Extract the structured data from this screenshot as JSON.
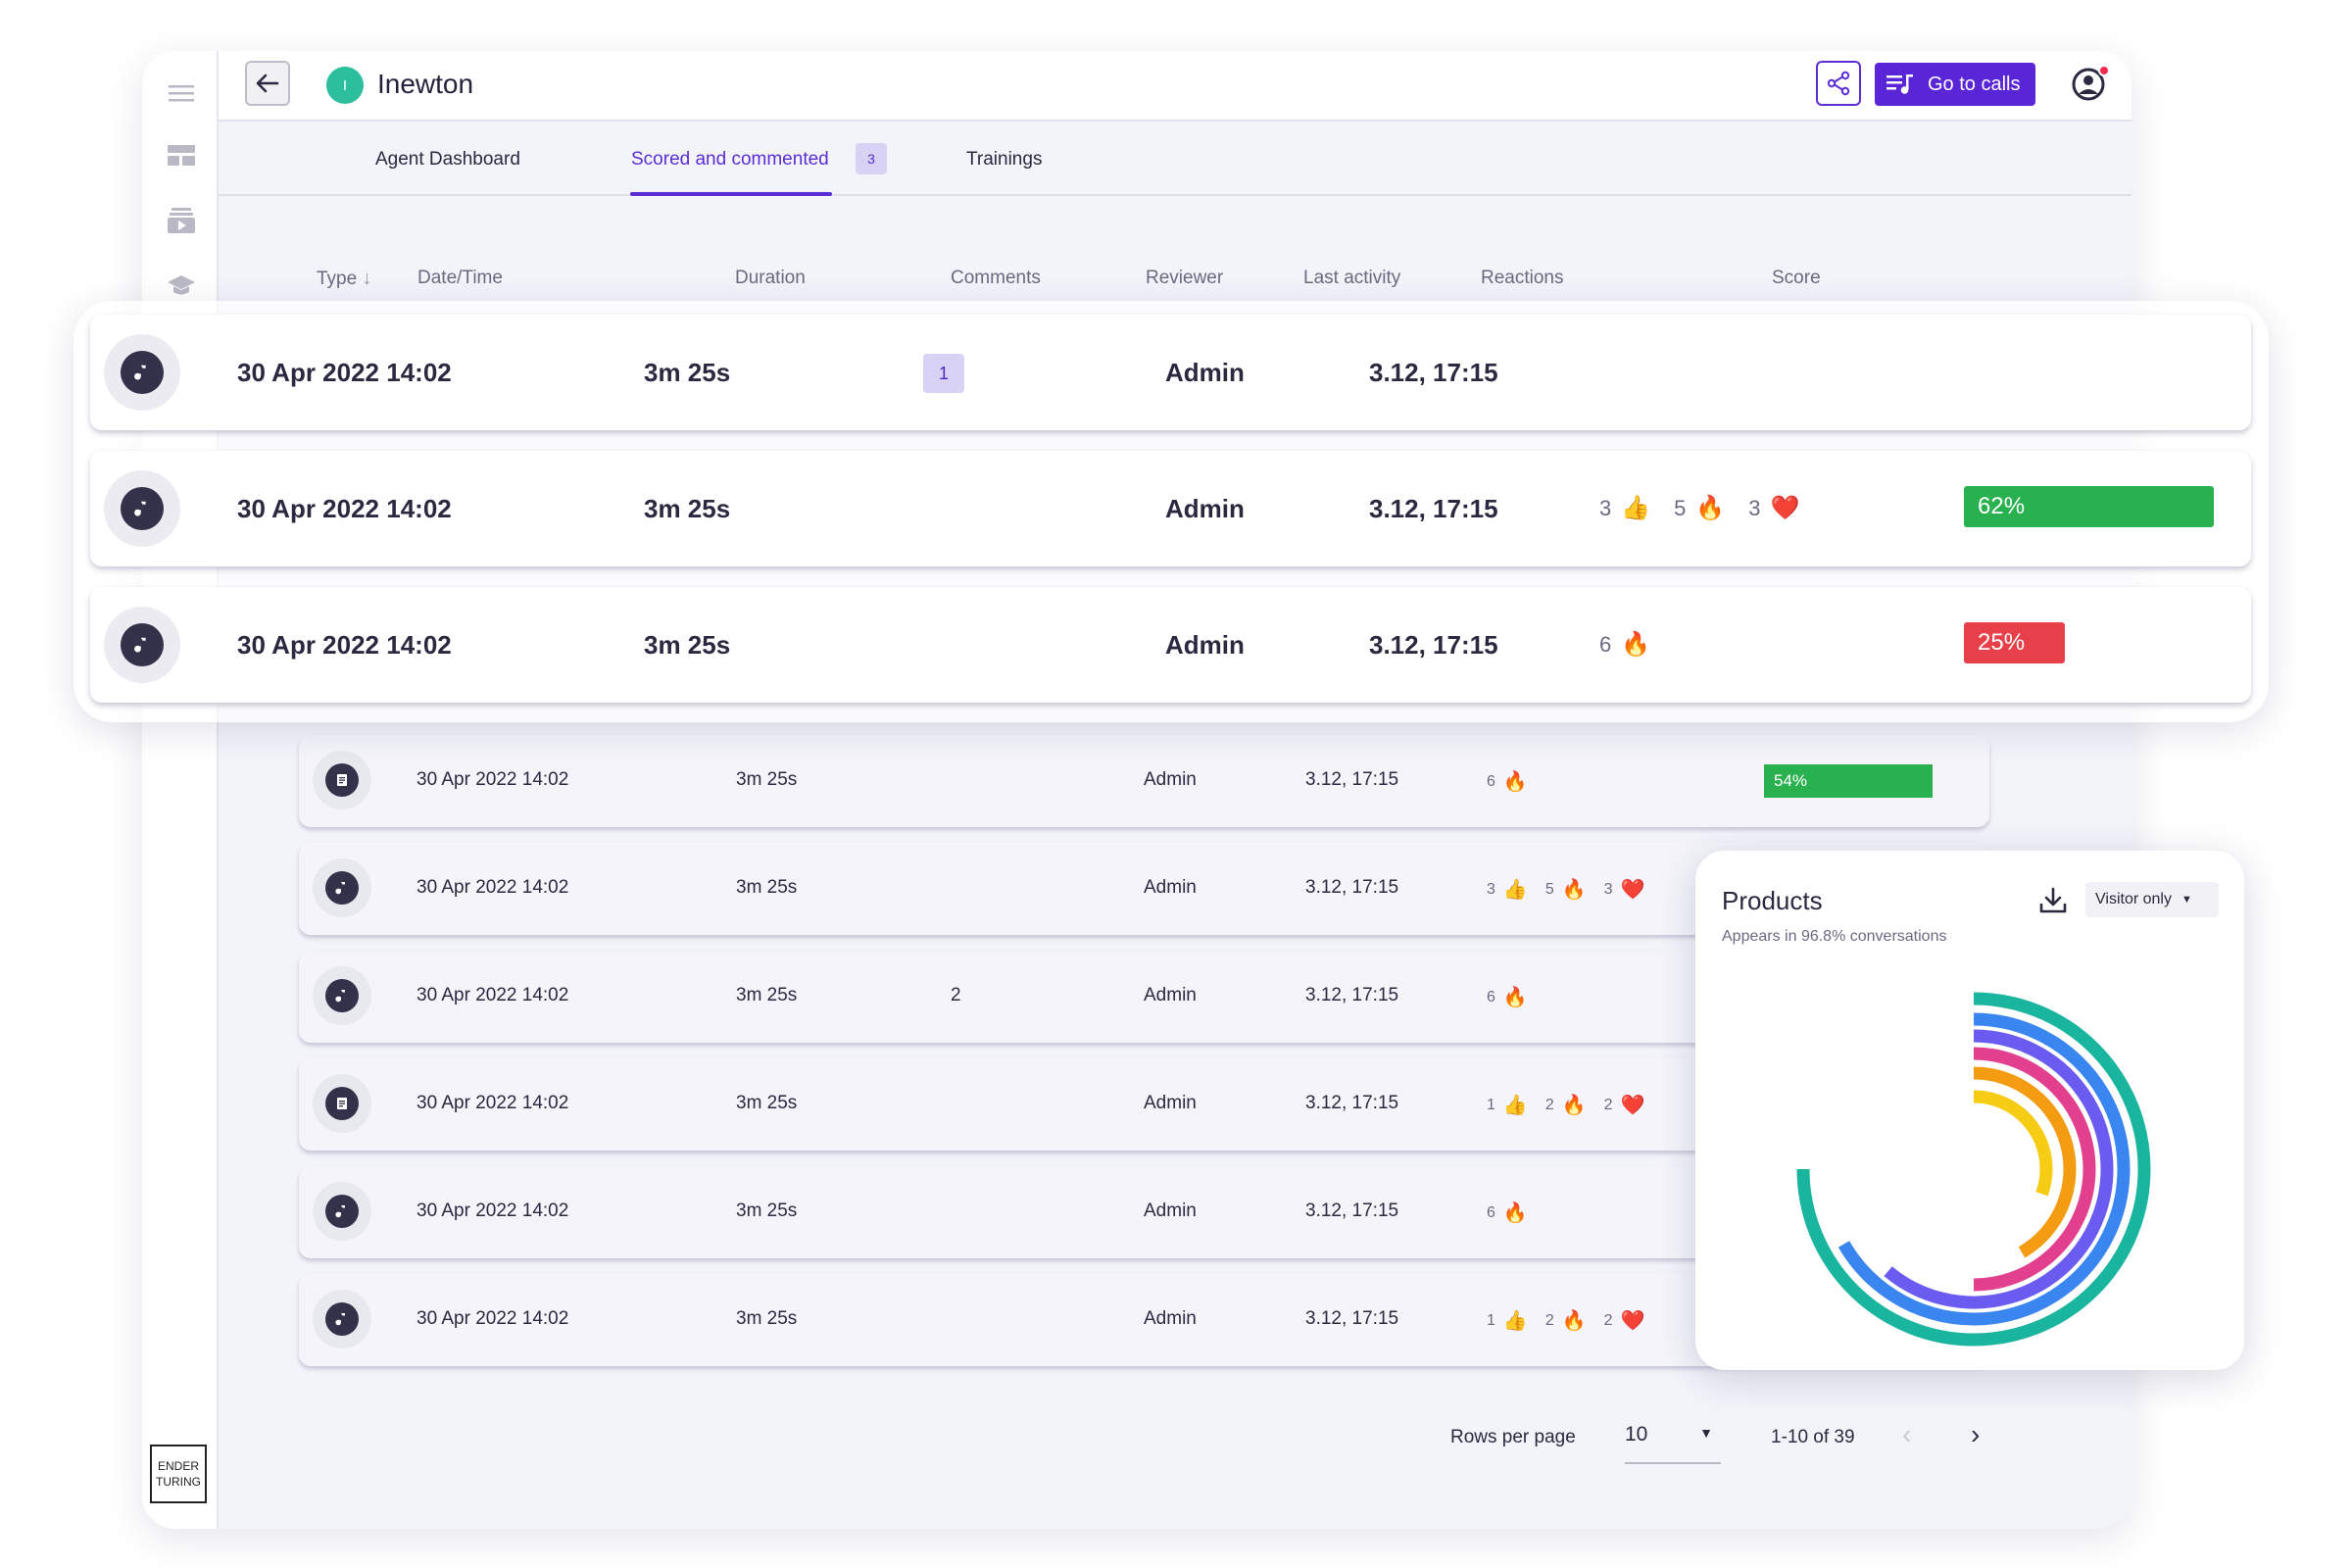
{
  "agent": {
    "initial": "I",
    "name": "Inewton"
  },
  "header": {
    "go_to_calls": "Go to calls"
  },
  "tabs": [
    {
      "label": "Agent Dashboard"
    },
    {
      "label": "Scored and commented",
      "badge": "3"
    },
    {
      "label": "Trainings"
    }
  ],
  "columns": {
    "type": "Type",
    "datetime": "Date/Time",
    "duration": "Duration",
    "comments": "Comments",
    "reviewer": "Reviewer",
    "last_activity": "Last activity",
    "reactions": "Reactions",
    "score": "Score"
  },
  "highlighted_rows": [
    {
      "type": "audio",
      "datetime": "30 Apr 2022 14:02",
      "duration": "3m 25s",
      "comments": "1",
      "reviewer": "Admin",
      "last_activity": "3.12, 17:15",
      "reactions": {
        "like": "",
        "fire": "",
        "heart": ""
      },
      "score": "",
      "score_value": null,
      "score_color": ""
    },
    {
      "type": "audio",
      "datetime": "30 Apr 2022 14:02",
      "duration": "3m 25s",
      "comments": "",
      "reviewer": "Admin",
      "last_activity": "3.12, 17:15",
      "reactions": {
        "like": "3",
        "fire": "5",
        "heart": "3"
      },
      "score": "62%",
      "score_value": 0.62,
      "score_color": "#2ab14f"
    },
    {
      "type": "audio",
      "datetime": "30 Apr 2022 14:02",
      "duration": "3m 25s",
      "comments": "",
      "reviewer": "Admin",
      "last_activity": "3.12, 17:15",
      "reactions": {
        "like": "",
        "fire": "6",
        "heart": ""
      },
      "score": "25%",
      "score_value": 0.25,
      "score_color": "#e8404a"
    }
  ],
  "rows": [
    {
      "type": "text",
      "datetime": "30 Apr 2022 14:02",
      "duration": "3m 25s",
      "comments": "",
      "reviewer": "Admin",
      "last_activity": "3.12, 17:15",
      "reactions": {
        "like": "",
        "fire": "6",
        "heart": ""
      },
      "score": "54%"
    },
    {
      "type": "audio",
      "datetime": "30 Apr 2022 14:02",
      "duration": "3m 25s",
      "comments": "",
      "reviewer": "Admin",
      "last_activity": "3.12, 17:15",
      "reactions": {
        "like": "3",
        "fire": "5",
        "heart": "3"
      },
      "score": ""
    },
    {
      "type": "audio",
      "datetime": "30 Apr 2022 14:02",
      "duration": "3m 25s",
      "comments": "2",
      "reviewer": "Admin",
      "last_activity": "3.12, 17:15",
      "reactions": {
        "like": "",
        "fire": "6",
        "heart": ""
      },
      "score": ""
    },
    {
      "type": "text",
      "datetime": "30 Apr 2022 14:02",
      "duration": "3m 25s",
      "comments": "",
      "reviewer": "Admin",
      "last_activity": "3.12, 17:15",
      "reactions": {
        "like": "1",
        "fire": "2",
        "heart": "2"
      },
      "score": ""
    },
    {
      "type": "audio",
      "datetime": "30 Apr 2022 14:02",
      "duration": "3m 25s",
      "comments": "",
      "reviewer": "Admin",
      "last_activity": "3.12, 17:15",
      "reactions": {
        "like": "",
        "fire": "6",
        "heart": ""
      },
      "score": ""
    },
    {
      "type": "audio",
      "datetime": "30 Apr 2022 14:02",
      "duration": "3m 25s",
      "comments": "",
      "reviewer": "Admin",
      "last_activity": "3.12, 17:15",
      "reactions": {
        "like": "1",
        "fire": "2",
        "heart": "2"
      },
      "score": ""
    }
  ],
  "pagination": {
    "rows_per_page_label": "Rows per page",
    "rows_per_page": "10",
    "range": "1-10 of 39"
  },
  "products_card": {
    "title": "Products",
    "subtitle": "Appears in 96.8% conversations",
    "filter": "Visitor only",
    "ring_colors": [
      "#1ab59f",
      "#3a86f0",
      "#6a5cf0",
      "#e23f8e",
      "#f39c12",
      "#f7cc14"
    ]
  },
  "logo": {
    "line1": "ENDER",
    "line2": "TURING"
  },
  "colors": {
    "accent": "#5a25d6",
    "score_good": "#2ab14f",
    "score_bad": "#e8404a"
  }
}
